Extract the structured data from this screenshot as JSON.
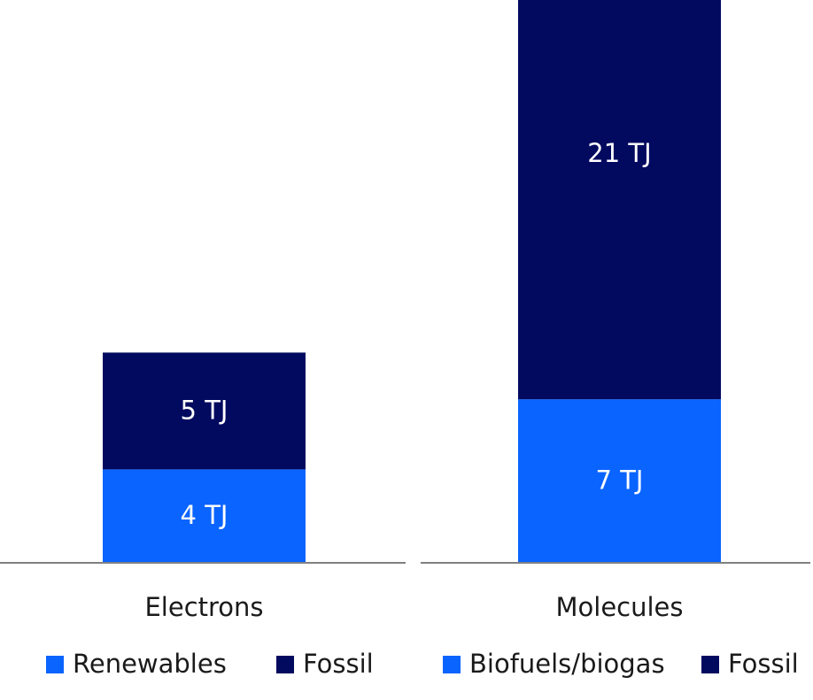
{
  "chart_data": [
    {
      "type": "bar",
      "stacked": true,
      "category": "Electrons",
      "unit": "TJ",
      "series": [
        {
          "name": "Renewables",
          "value": 4,
          "label": "4 TJ",
          "color": "#0a64ff"
        },
        {
          "name": "Fossil",
          "value": 5,
          "label": "5 TJ",
          "color": "#020a5f"
        }
      ],
      "legend": [
        "Renewables",
        "Fossil"
      ],
      "legend_position": "bottom"
    },
    {
      "type": "bar",
      "stacked": true,
      "category": "Molecules",
      "unit": "TJ",
      "series": [
        {
          "name": "Biofuels/biogas",
          "value": 7,
          "label": "7 TJ",
          "color": "#0a64ff"
        },
        {
          "name": "Fossil",
          "value": 21,
          "label": "21 TJ",
          "color": "#020a5f"
        }
      ],
      "legend": [
        "Biofuels/biogas",
        "Fossil"
      ],
      "legend_position": "bottom"
    }
  ],
  "colors": {
    "axis": "#808080",
    "primary_blue": "#0a64ff",
    "dark_navy": "#020a5f"
  }
}
